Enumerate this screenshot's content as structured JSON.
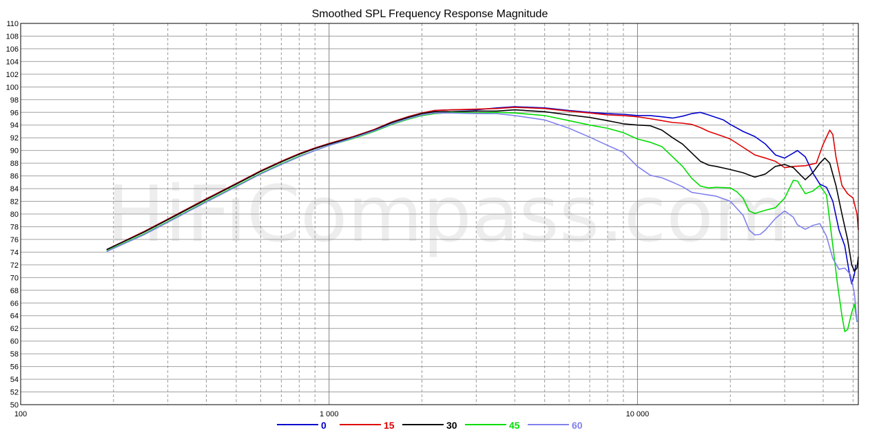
{
  "chart_data": {
    "type": "line",
    "title": "Smoothed SPL Frequency Response Magnitude",
    "watermark": "HiFiCompass.com",
    "x_scale": "log",
    "xlim": [
      100,
      52000
    ],
    "ylim": [
      50,
      110
    ],
    "grid": true,
    "legend_position": "bottom-center",
    "x_tick_labels": [
      {
        "value": 100,
        "label": "100"
      },
      {
        "value": 1000,
        "label": "1 000"
      },
      {
        "value": 10000,
        "label": "10 000"
      }
    ],
    "y_ticks": [
      50,
      52,
      54,
      56,
      58,
      60,
      62,
      64,
      66,
      68,
      70,
      72,
      74,
      76,
      78,
      80,
      82,
      84,
      86,
      88,
      90,
      92,
      94,
      96,
      98,
      100,
      102,
      104,
      106,
      108,
      110
    ],
    "series": [
      {
        "name": "0",
        "color": "#0000cc",
        "points": [
          [
            190,
            74.4
          ],
          [
            250,
            77.2
          ],
          [
            300,
            79.2
          ],
          [
            400,
            82.4
          ],
          [
            500,
            84.8
          ],
          [
            600,
            86.8
          ],
          [
            700,
            88.3
          ],
          [
            800,
            89.5
          ],
          [
            900,
            90.4
          ],
          [
            1000,
            91.1
          ],
          [
            1200,
            92.2
          ],
          [
            1400,
            93.3
          ],
          [
            1600,
            94.5
          ],
          [
            1800,
            95.3
          ],
          [
            2000,
            95.9
          ],
          [
            2200,
            96.3
          ],
          [
            2500,
            96.4
          ],
          [
            3000,
            96.4
          ],
          [
            3500,
            96.7
          ],
          [
            4000,
            96.9
          ],
          [
            5000,
            96.7
          ],
          [
            6000,
            96.3
          ],
          [
            7000,
            96.0
          ],
          [
            8000,
            95.8
          ],
          [
            9000,
            95.7
          ],
          [
            10000,
            95.5
          ],
          [
            11000,
            95.5
          ],
          [
            12000,
            95.3
          ],
          [
            13000,
            95.1
          ],
          [
            14000,
            95.4
          ],
          [
            15000,
            95.8
          ],
          [
            16000,
            96.0
          ],
          [
            17000,
            95.6
          ],
          [
            18000,
            95.2
          ],
          [
            19000,
            94.8
          ],
          [
            20000,
            94.1
          ],
          [
            22000,
            93.0
          ],
          [
            24000,
            92.2
          ],
          [
            26000,
            91.0
          ],
          [
            28000,
            89.3
          ],
          [
            30000,
            88.8
          ],
          [
            32000,
            89.6
          ],
          [
            33000,
            90.0
          ],
          [
            35000,
            89.0
          ],
          [
            37000,
            86.5
          ],
          [
            39000,
            84.7
          ],
          [
            41000,
            84.2
          ],
          [
            43000,
            82.0
          ],
          [
            45000,
            77.5
          ],
          [
            47000,
            75.0
          ],
          [
            48500,
            71.0
          ],
          [
            49500,
            69.0
          ],
          [
            50500,
            70.5
          ],
          [
            51000,
            72.0
          ]
        ]
      },
      {
        "name": "15",
        "color": "#dd0000",
        "points": [
          [
            190,
            74.4
          ],
          [
            250,
            77.2
          ],
          [
            300,
            79.2
          ],
          [
            400,
            82.4
          ],
          [
            500,
            84.8
          ],
          [
            600,
            86.8
          ],
          [
            700,
            88.3
          ],
          [
            800,
            89.5
          ],
          [
            900,
            90.4
          ],
          [
            1000,
            91.1
          ],
          [
            1200,
            92.2
          ],
          [
            1400,
            93.3
          ],
          [
            1600,
            94.5
          ],
          [
            1800,
            95.3
          ],
          [
            2000,
            95.9
          ],
          [
            2200,
            96.3
          ],
          [
            2500,
            96.4
          ],
          [
            3000,
            96.5
          ],
          [
            3500,
            96.6
          ],
          [
            4000,
            96.8
          ],
          [
            5000,
            96.6
          ],
          [
            6000,
            96.2
          ],
          [
            7000,
            95.9
          ],
          [
            8000,
            95.6
          ],
          [
            9000,
            95.5
          ],
          [
            10000,
            95.3
          ],
          [
            11000,
            95.0
          ],
          [
            12000,
            94.7
          ],
          [
            13000,
            94.4
          ],
          [
            14000,
            94.3
          ],
          [
            15000,
            94.1
          ],
          [
            16000,
            93.6
          ],
          [
            17000,
            93.0
          ],
          [
            18000,
            92.6
          ],
          [
            19000,
            92.2
          ],
          [
            20000,
            91.8
          ],
          [
            22000,
            90.5
          ],
          [
            24000,
            89.3
          ],
          [
            26000,
            88.8
          ],
          [
            28000,
            88.3
          ],
          [
            30000,
            87.3
          ],
          [
            32000,
            87.5
          ],
          [
            35000,
            87.6
          ],
          [
            38000,
            88.0
          ],
          [
            40000,
            91.0
          ],
          [
            42000,
            93.2
          ],
          [
            43000,
            92.5
          ],
          [
            44000,
            89.0
          ],
          [
            46000,
            84.5
          ],
          [
            48000,
            83.2
          ],
          [
            50000,
            82.5
          ],
          [
            51500,
            80.0
          ],
          [
            52000,
            77.5
          ]
        ]
      },
      {
        "name": "30",
        "color": "#000000",
        "points": [
          [
            190,
            74.4
          ],
          [
            250,
            77.1
          ],
          [
            300,
            79.1
          ],
          [
            400,
            82.3
          ],
          [
            500,
            84.7
          ],
          [
            600,
            86.7
          ],
          [
            700,
            88.2
          ],
          [
            800,
            89.4
          ],
          [
            900,
            90.3
          ],
          [
            1000,
            91.0
          ],
          [
            1200,
            92.1
          ],
          [
            1400,
            93.2
          ],
          [
            1600,
            94.4
          ],
          [
            1800,
            95.2
          ],
          [
            2000,
            95.8
          ],
          [
            2200,
            96.1
          ],
          [
            2500,
            96.1
          ],
          [
            3000,
            96.2
          ],
          [
            3500,
            96.2
          ],
          [
            4000,
            96.4
          ],
          [
            5000,
            96.1
          ],
          [
            6000,
            95.6
          ],
          [
            7000,
            95.2
          ],
          [
            8000,
            94.7
          ],
          [
            9000,
            94.2
          ],
          [
            10000,
            94.0
          ],
          [
            11000,
            93.9
          ],
          [
            12000,
            93.2
          ],
          [
            13000,
            92.0
          ],
          [
            14000,
            91.0
          ],
          [
            15000,
            89.6
          ],
          [
            16000,
            88.3
          ],
          [
            17000,
            87.7
          ],
          [
            18000,
            87.5
          ],
          [
            20000,
            87.0
          ],
          [
            22000,
            86.5
          ],
          [
            24000,
            85.8
          ],
          [
            26000,
            86.3
          ],
          [
            28000,
            87.5
          ],
          [
            30000,
            87.8
          ],
          [
            32000,
            87.3
          ],
          [
            34000,
            86.0
          ],
          [
            35000,
            85.4
          ],
          [
            37000,
            86.5
          ],
          [
            39000,
            88.0
          ],
          [
            40500,
            88.8
          ],
          [
            42000,
            88.0
          ],
          [
            44000,
            84.5
          ],
          [
            46000,
            80.0
          ],
          [
            48000,
            76.0
          ],
          [
            49500,
            72.0
          ],
          [
            50500,
            71.0
          ],
          [
            51500,
            71.5
          ],
          [
            52000,
            73.3
          ]
        ]
      },
      {
        "name": "45",
        "color": "#00dd00",
        "points": [
          [
            190,
            74.2
          ],
          [
            250,
            76.8
          ],
          [
            300,
            78.8
          ],
          [
            400,
            82.0
          ],
          [
            500,
            84.4
          ],
          [
            600,
            86.4
          ],
          [
            700,
            87.9
          ],
          [
            800,
            89.1
          ],
          [
            900,
            90.0
          ],
          [
            1000,
            90.8
          ],
          [
            1200,
            91.9
          ],
          [
            1400,
            93.0
          ],
          [
            1600,
            94.1
          ],
          [
            1800,
            94.9
          ],
          [
            2000,
            95.5
          ],
          [
            2200,
            95.8
          ],
          [
            2500,
            96.0
          ],
          [
            3000,
            95.9
          ],
          [
            3500,
            96.0
          ],
          [
            4000,
            95.9
          ],
          [
            5000,
            95.5
          ],
          [
            6000,
            94.7
          ],
          [
            7000,
            94.0
          ],
          [
            8000,
            93.5
          ],
          [
            9000,
            92.8
          ],
          [
            10000,
            91.8
          ],
          [
            11000,
            91.3
          ],
          [
            12000,
            90.6
          ],
          [
            13000,
            89.0
          ],
          [
            14000,
            87.5
          ],
          [
            15000,
            85.6
          ],
          [
            16000,
            84.4
          ],
          [
            17000,
            84.1
          ],
          [
            18000,
            84.2
          ],
          [
            20000,
            84.1
          ],
          [
            21000,
            83.5
          ],
          [
            22000,
            82.5
          ],
          [
            23000,
            80.5
          ],
          [
            24000,
            80.1
          ],
          [
            26000,
            80.6
          ],
          [
            28000,
            81.0
          ],
          [
            30000,
            82.5
          ],
          [
            32000,
            85.3
          ],
          [
            33000,
            85.2
          ],
          [
            35000,
            83.2
          ],
          [
            37000,
            83.6
          ],
          [
            39000,
            84.5
          ],
          [
            41000,
            83.0
          ],
          [
            43000,
            75.0
          ],
          [
            44500,
            69.0
          ],
          [
            46000,
            64.0
          ],
          [
            47000,
            61.5
          ],
          [
            48000,
            61.8
          ],
          [
            49500,
            64.5
          ],
          [
            50500,
            65.8
          ],
          [
            51500,
            63.0
          ]
        ]
      },
      {
        "name": "60",
        "color": "#8080ee",
        "points": [
          [
            190,
            74.1
          ],
          [
            250,
            76.7
          ],
          [
            300,
            78.7
          ],
          [
            400,
            81.9
          ],
          [
            500,
            84.3
          ],
          [
            600,
            86.3
          ],
          [
            700,
            87.8
          ],
          [
            800,
            89.0
          ],
          [
            900,
            90.0
          ],
          [
            1000,
            90.8
          ],
          [
            1200,
            92.0
          ],
          [
            1400,
            93.1
          ],
          [
            1600,
            94.2
          ],
          [
            1800,
            95.0
          ],
          [
            2000,
            95.6
          ],
          [
            2200,
            95.9
          ],
          [
            2500,
            95.9
          ],
          [
            3000,
            95.8
          ],
          [
            3500,
            95.8
          ],
          [
            4000,
            95.5
          ],
          [
            5000,
            94.8
          ],
          [
            6000,
            93.5
          ],
          [
            7000,
            92.1
          ],
          [
            8000,
            90.8
          ],
          [
            9000,
            89.7
          ],
          [
            10000,
            87.5
          ],
          [
            11000,
            86.1
          ],
          [
            12000,
            85.7
          ],
          [
            13000,
            85.0
          ],
          [
            14000,
            84.3
          ],
          [
            15000,
            83.4
          ],
          [
            16000,
            83.2
          ],
          [
            17000,
            83.0
          ],
          [
            18000,
            82.8
          ],
          [
            20000,
            82.0
          ],
          [
            22000,
            79.8
          ],
          [
            23000,
            77.5
          ],
          [
            24000,
            76.7
          ],
          [
            25000,
            76.8
          ],
          [
            26000,
            77.5
          ],
          [
            28000,
            79.3
          ],
          [
            30000,
            80.5
          ],
          [
            32000,
            79.5
          ],
          [
            33000,
            78.3
          ],
          [
            35000,
            77.6
          ],
          [
            37000,
            78.2
          ],
          [
            39000,
            78.5
          ],
          [
            41000,
            76.5
          ],
          [
            43000,
            73.0
          ],
          [
            45000,
            71.3
          ],
          [
            47000,
            71.5
          ],
          [
            49000,
            70.5
          ],
          [
            50500,
            67.5
          ],
          [
            51500,
            63.0
          ]
        ]
      }
    ]
  }
}
